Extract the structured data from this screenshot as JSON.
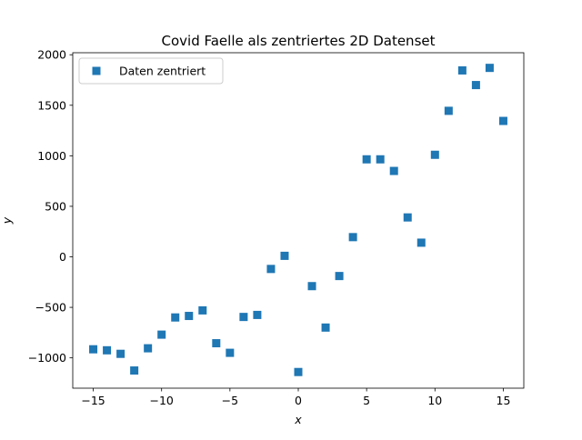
{
  "chart_data": {
    "type": "scatter",
    "title": "Covid Faelle als zentriertes 2D Datenset",
    "xlabel": "x",
    "ylabel": "y",
    "xlim": [
      -16.5,
      16.5
    ],
    "ylim": [
      -1300,
      2020
    ],
    "grid": false,
    "legend_position": "top-left",
    "x_ticks": [
      -15,
      -10,
      -5,
      0,
      5,
      10,
      15
    ],
    "x_tick_labels": [
      "−15",
      "−10",
      "−5",
      "0",
      "5",
      "10",
      "15"
    ],
    "y_ticks": [
      -1000,
      -500,
      0,
      500,
      1000,
      1500,
      2000
    ],
    "y_tick_labels": [
      "−1000",
      "−500",
      "0",
      "500",
      "1000",
      "1500",
      "2000"
    ],
    "series": [
      {
        "name": "Daten zentriert",
        "marker": "square",
        "color": "#1f77b4",
        "x": [
          -15,
          -14,
          -13,
          -12,
          -11,
          -10,
          -9,
          -8,
          -7,
          -6,
          -5,
          -4,
          -3,
          -2,
          -1,
          0,
          1,
          2,
          3,
          4,
          5,
          6,
          7,
          8,
          9,
          10,
          11,
          12,
          13,
          14,
          15
        ],
        "y": [
          -915,
          -925,
          -960,
          -1125,
          -905,
          -770,
          -600,
          -585,
          -530,
          -855,
          -950,
          -595,
          -575,
          -120,
          10,
          -1140,
          -290,
          -700,
          -190,
          195,
          965,
          965,
          850,
          390,
          140,
          1010,
          1445,
          1845,
          1700,
          1870,
          1345
        ]
      }
    ]
  }
}
